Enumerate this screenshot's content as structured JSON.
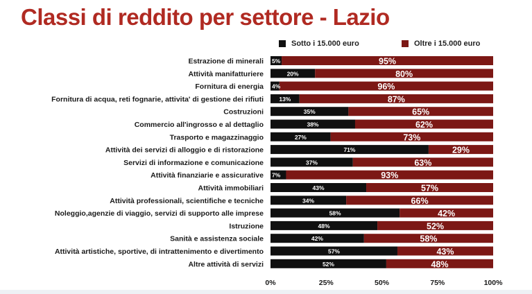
{
  "title": "Classi di reddito per settore - Lazio",
  "colors": {
    "title": "#b02a22",
    "series_below": "#101010",
    "series_above": "#7c1815"
  },
  "chart_data": {
    "type": "bar",
    "orientation": "horizontal",
    "stacked": "percent",
    "title": "Classi di reddito per settore - Lazio",
    "categories": [
      "Estrazione di minerali",
      "Attività manifatturiere",
      "Fornitura di energia",
      "Fornitura di acqua, reti fognarie, attivita' di gestione dei rifiuti",
      "Costruzioni",
      "Commercio all'ingrosso e al dettaglio",
      "Trasporto e magazzinaggio",
      "Attività dei servizi di alloggio e di ristorazione",
      "Servizi di informazione e comunicazione",
      "Attività finanziarie e assicurative",
      "Attività immobiliari",
      "Attività professionali, scientifiche e tecniche",
      "Noleggio,agenzie di viaggio, servizi di supporto alle imprese",
      "Istruzione",
      "Sanità e assistenza sociale",
      "Attività artistiche, sportive, di intrattenimento e divertimento",
      "Altre attività di servizi"
    ],
    "series": [
      {
        "name": "Sotto i 15.000 euro",
        "values": [
          5,
          20,
          4,
          13,
          35,
          38,
          27,
          71,
          37,
          7,
          43,
          34,
          58,
          48,
          42,
          57,
          52
        ]
      },
      {
        "name": "Oltre i 15.000 euro",
        "values": [
          95,
          80,
          96,
          87,
          65,
          62,
          73,
          29,
          63,
          93,
          57,
          66,
          42,
          52,
          58,
          43,
          48
        ]
      }
    ],
    "xlim": [
      0,
      100
    ],
    "xticks": [
      "0%",
      "25%",
      "50%",
      "75%",
      "100%"
    ],
    "legend": "top",
    "grid": false
  }
}
